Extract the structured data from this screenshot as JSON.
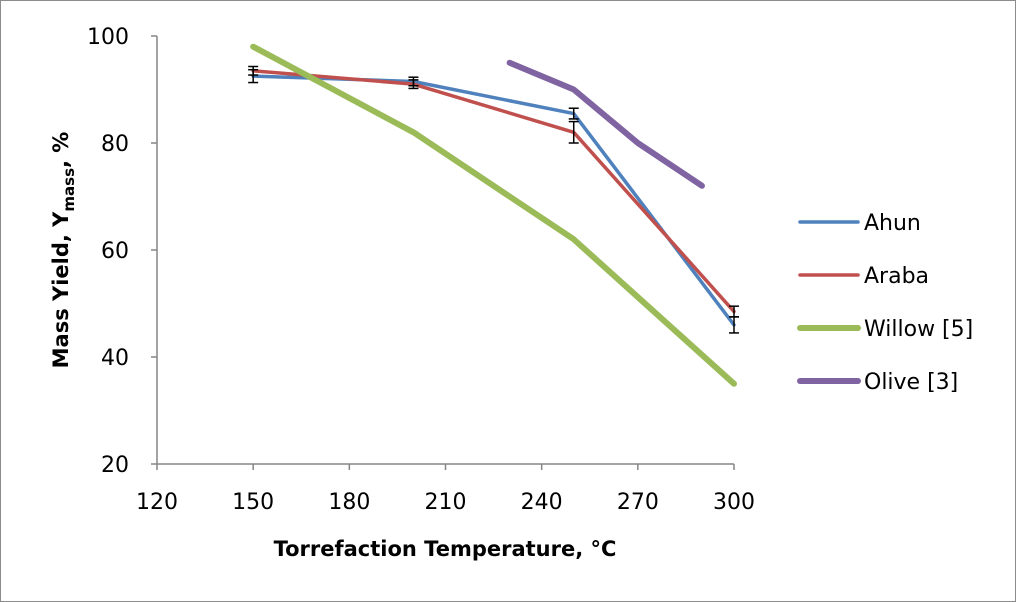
{
  "chart_data": {
    "type": "line",
    "xlabel": "Torrefaction Temperature, °C",
    "ylabel": {
      "main": "Mass Yield, Y",
      "subscript": "mass",
      "suffix": ", %"
    },
    "xlim": [
      120,
      300
    ],
    "ylim": [
      20,
      100
    ],
    "xticks": [
      120,
      150,
      180,
      210,
      240,
      270,
      300
    ],
    "yticks": [
      20,
      40,
      60,
      80,
      100
    ],
    "grid": false,
    "legend_position": "right",
    "series": [
      {
        "name": "Ahun",
        "color": "#4f81bd",
        "x": [
          150,
          200,
          250,
          300
        ],
        "y": [
          92.5,
          91.5,
          85.5,
          46
        ],
        "error": [
          1.2,
          0.8,
          1.0,
          1.5
        ]
      },
      {
        "name": "Araba",
        "color": "#c0504d",
        "x": [
          150,
          200,
          250,
          300
        ],
        "y": [
          93.5,
          91,
          82,
          48.5
        ],
        "error": [
          0.8,
          0.8,
          2.0,
          1.0
        ]
      },
      {
        "name": "Willow [5]",
        "color": "#9bbb59",
        "x": [
          150,
          200,
          250,
          300
        ],
        "y": [
          98,
          82,
          62,
          35
        ]
      },
      {
        "name": "Olive [3]",
        "color": "#8064a2",
        "x": [
          230,
          250,
          270,
          290
        ],
        "y": [
          95,
          90,
          80,
          72
        ]
      }
    ]
  }
}
